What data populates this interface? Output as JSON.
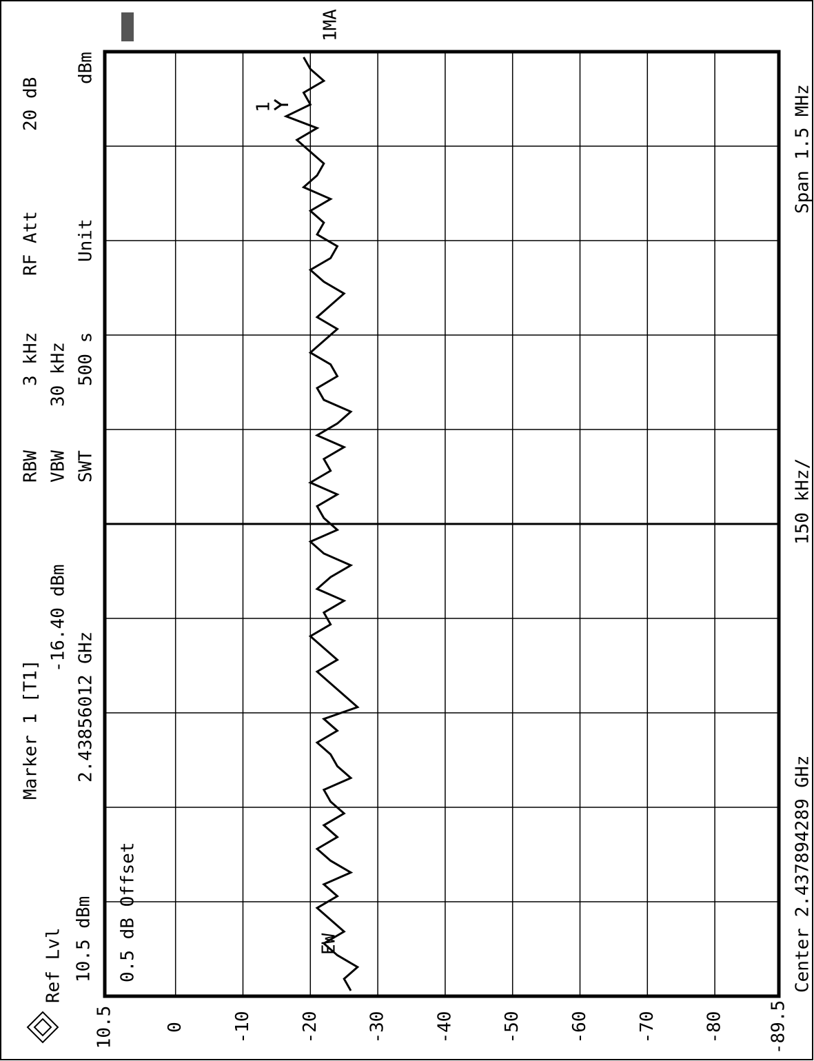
{
  "chart_data": {
    "type": "line",
    "header": {
      "ref_lvl": "Ref Lvl",
      "ref_value": "10.5 dBm",
      "marker": "Marker 1 [T1]",
      "marker_level": "-16.40 dBm",
      "marker_freq": "2.43856012 GHz",
      "rbw": "RBW",
      "vbw": "VBW",
      "swt": "SWT",
      "rbw_value": "3 kHz",
      "vbw_value": "30 kHz",
      "swt_value": "500 s",
      "rf_att": "RF Att",
      "rf_att_value": "20 dB",
      "unit": "Unit",
      "unit_value": "dBm"
    },
    "offset": "0.5 dB Offset",
    "footer": {
      "center": "Center 2.437894289 GHz",
      "per_div": "150 kHz/",
      "span": "Span 1.5 MHz"
    },
    "trace_label": "1MA",
    "ew_label": "EW",
    "marker_label": "1",
    "series": [
      {
        "name": null,
        "color": "#000000",
        "values": [
          -26,
          -25,
          -27,
          -24,
          -22,
          -25,
          -23,
          -21,
          -24,
          -22,
          -26,
          -23,
          -21,
          -24,
          -22,
          -25,
          -23,
          -22,
          -26,
          -24,
          -23,
          -21,
          -24,
          -22,
          -27,
          -25,
          -23,
          -21,
          -24,
          -22,
          -20,
          -23,
          -22,
          -25,
          -21,
          -23,
          -26,
          -22,
          -20,
          -24,
          -22,
          -21,
          -24,
          -20,
          -23,
          -22,
          -25,
          -21,
          -24,
          -26,
          -22,
          -21,
          -24,
          -23,
          -20,
          -22,
          -24,
          -21,
          -23,
          -25,
          -22,
          -20,
          -23,
          -24,
          -21,
          -22,
          -20,
          -23,
          -19,
          -21,
          -22,
          -20,
          -18,
          -21,
          -16.4,
          -20,
          -19,
          -22,
          -20,
          -19
        ]
      }
    ],
    "ylim": [
      -89.5,
      10.5
    ],
    "yticks": [
      10.5,
      0,
      -10,
      -20,
      -30,
      -40,
      -50,
      -60,
      -70,
      -80,
      -89.5
    ],
    "grid": true
  }
}
